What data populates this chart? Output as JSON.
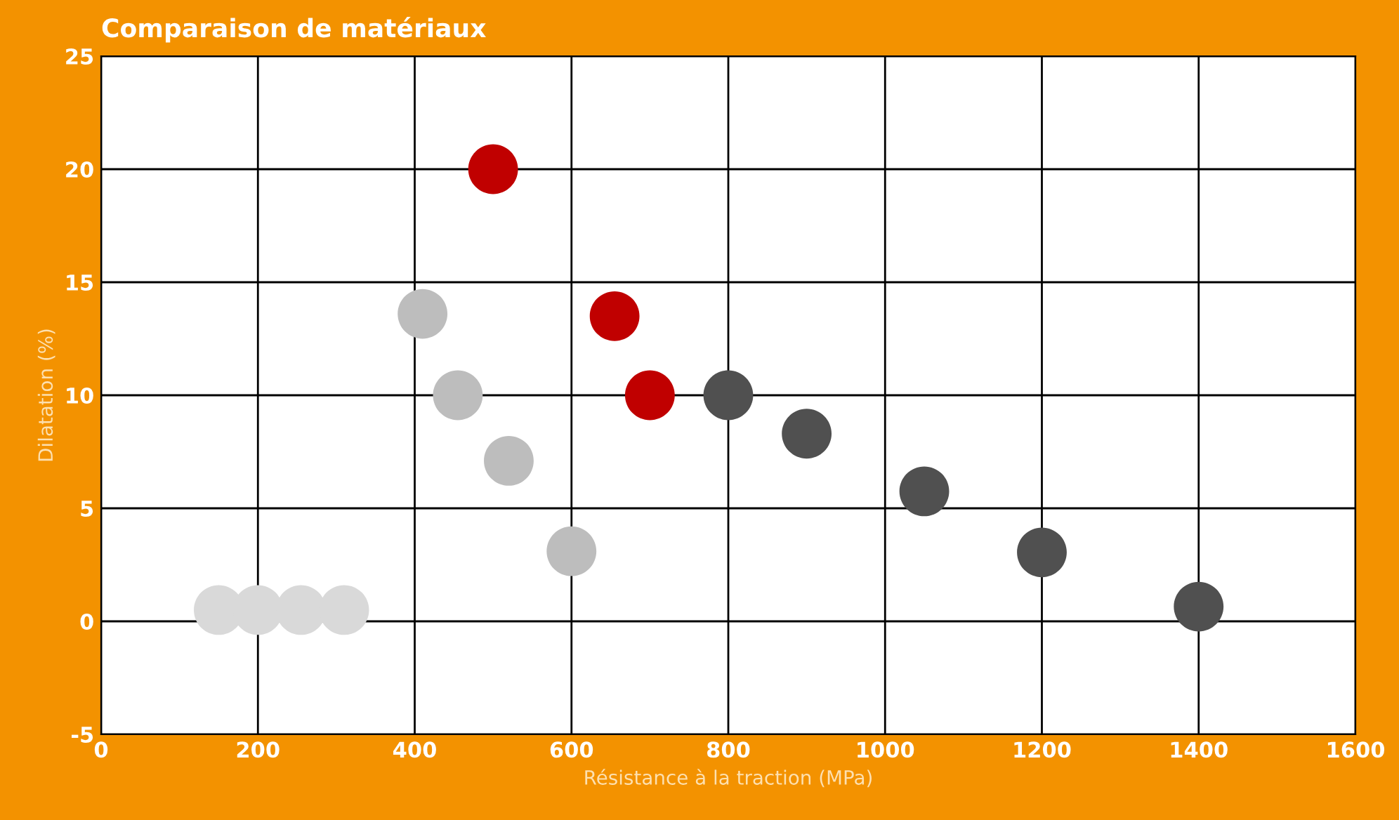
{
  "chart_data": {
    "type": "scatter",
    "title": "Comparaison de matériaux",
    "xlabel": "Résistance à la traction (MPa)",
    "ylabel": "Dilatation (%)",
    "xlim": [
      0,
      1600
    ],
    "xticks": [
      0,
      200,
      400,
      600,
      800,
      1000,
      1200,
      1400,
      1600
    ],
    "ylim": [
      -5,
      25
    ],
    "yticks": [
      -5,
      0,
      5,
      10,
      15,
      20,
      25
    ],
    "grid": true,
    "marker": "circle",
    "series": [
      {
        "color": "#d9d9d9",
        "x": [
          150,
          200,
          255,
          310
        ],
        "values": [
          0.5,
          0.5,
          0.5,
          0.5
        ]
      },
      {
        "color": "#bdbdbd",
        "x": [
          410,
          455,
          520,
          600
        ],
        "values": [
          13.6,
          10,
          7.1,
          3.1
        ]
      },
      {
        "color": "#c00000",
        "x": [
          500,
          655,
          700
        ],
        "values": [
          20,
          13.5,
          10
        ]
      },
      {
        "color": "#505050",
        "x": [
          800,
          900,
          1050,
          1200,
          1400
        ],
        "values": [
          10,
          8.3,
          5.75,
          3.05,
          0.65
        ]
      }
    ]
  }
}
